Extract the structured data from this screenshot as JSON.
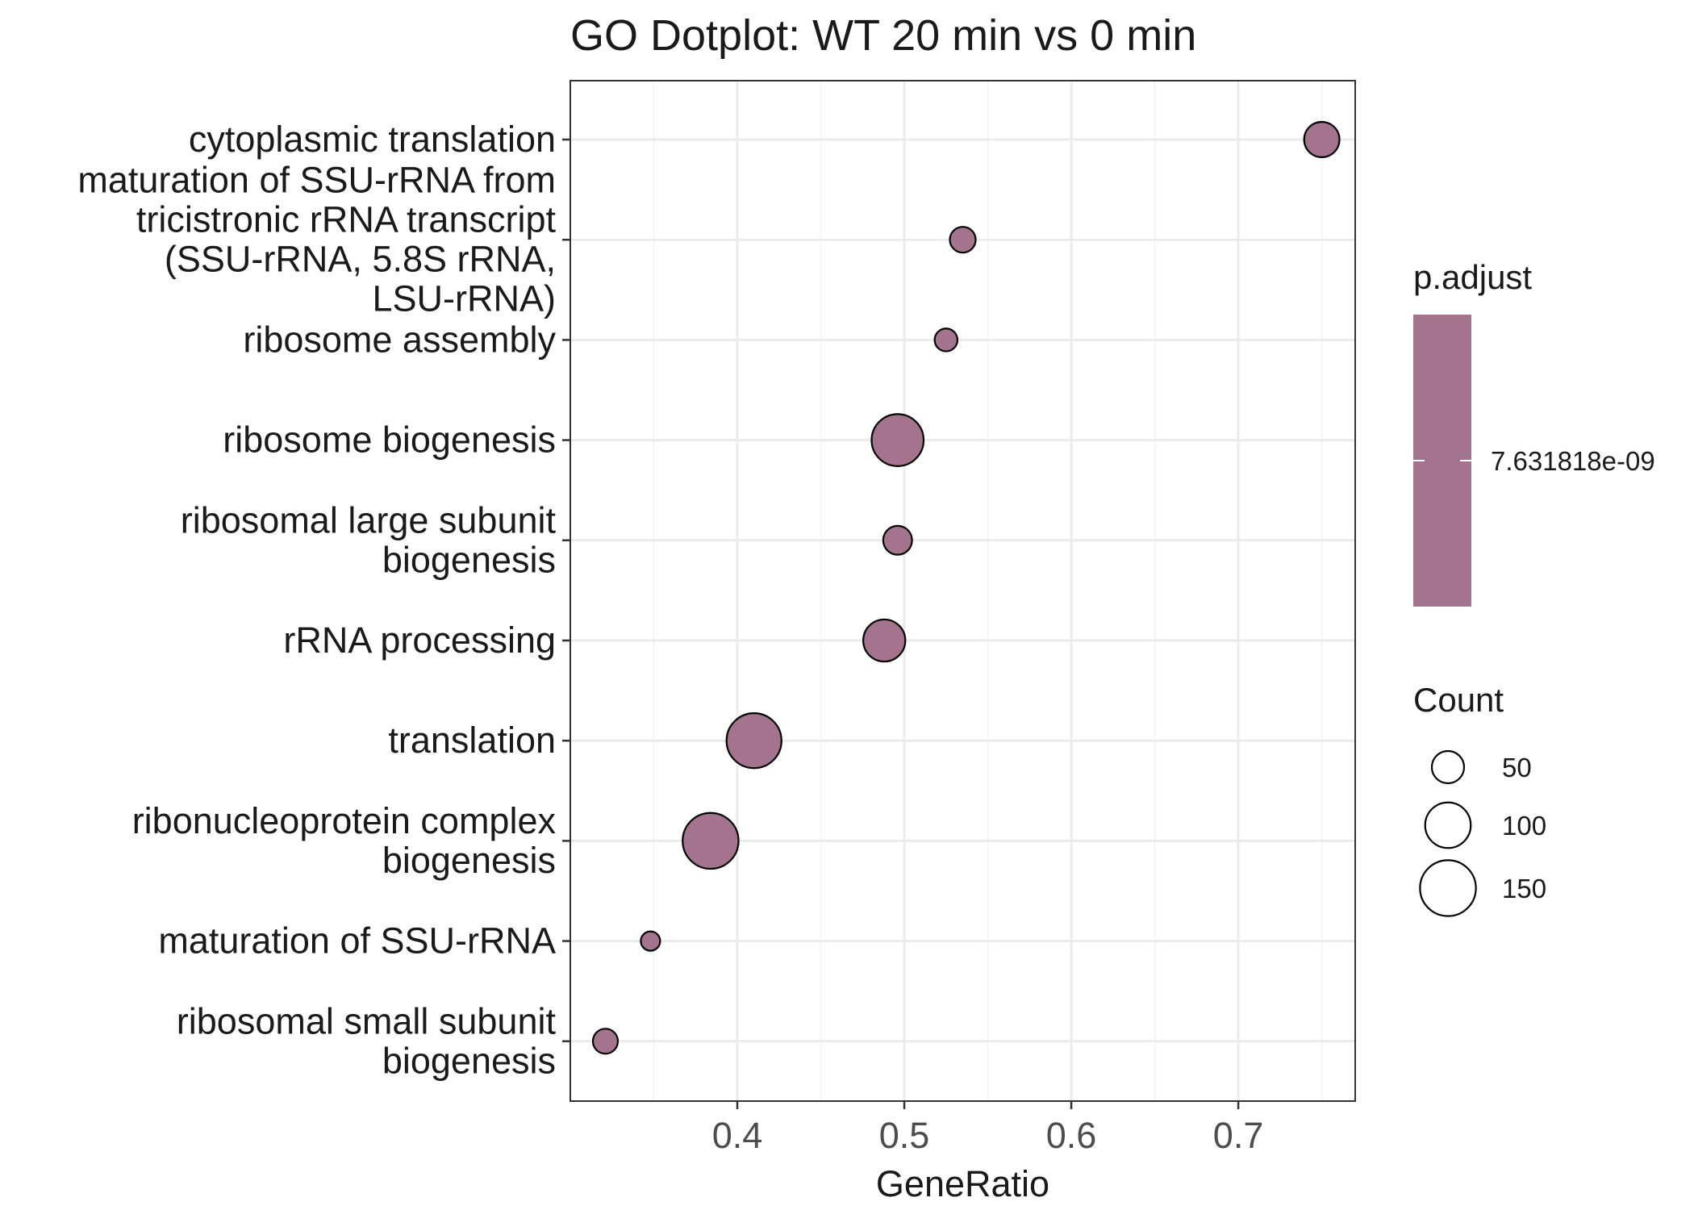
{
  "chart_data": {
    "type": "scatter",
    "title": "GO Dotplot: WT 20 min vs 0 min",
    "xlabel": "GeneRatio",
    "ylabel": "",
    "xlim": [
      0.3,
      0.77
    ],
    "x_ticks": [
      "0.4",
      "0.5",
      "0.6",
      "0.7"
    ],
    "grid": true,
    "point_color": "#A4738E",
    "categories": [
      "cytoplasmic translation",
      "maturation of SSU-rRNA from\ntricistronic rRNA transcript\n(SSU-rRNA, 5.8S rRNA,\nLSU-rRNA)",
      "ribosome assembly",
      "ribosome biogenesis",
      "ribosomal large subunit\nbiogenesis",
      "rRNA processing",
      "translation",
      "ribonucleoprotein complex\nbiogenesis",
      "maturation of SSU-rRNA",
      "ribosomal small subunit\nbiogenesis"
    ],
    "series": [
      {
        "x": [
          0.75,
          0.535,
          0.525,
          0.496,
          0.496,
          0.488,
          0.41,
          0.384,
          0.348,
          0.321
        ],
        "count": [
          60,
          32,
          25,
          130,
          40,
          85,
          145,
          150,
          18,
          30
        ]
      }
    ],
    "legend": {
      "color_title": "p.adjust",
      "color_value_label": "7.631818e-09",
      "size_title": "Count",
      "size_labels": [
        "50",
        "100",
        "150"
      ],
      "size_values": [
        50,
        100,
        150
      ],
      "placement": "right"
    }
  }
}
